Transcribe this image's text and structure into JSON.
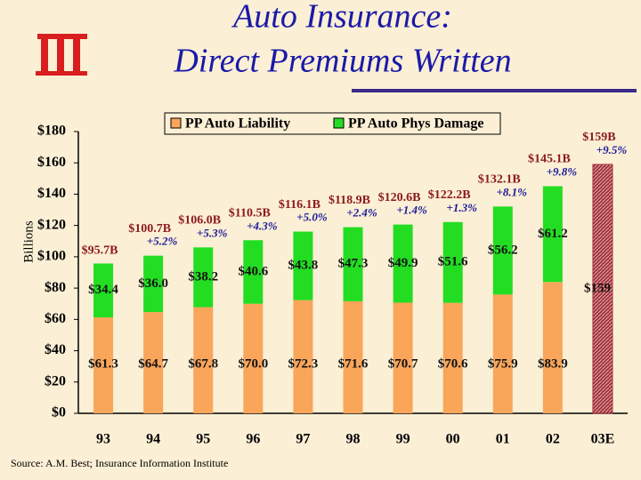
{
  "chart_data": {
    "type": "stacked_bar",
    "title_lines": [
      "Auto Insurance:",
      "Direct Premiums Written"
    ],
    "y_label": "Billions",
    "source": "Source: A.M. Best; Insurance Information Institute",
    "categories": [
      "93",
      "94",
      "95",
      "96",
      "97",
      "98",
      "99",
      "00",
      "01",
      "02",
      "03E"
    ],
    "series": [
      {
        "name": "PP Auto Liability",
        "color": "#f9a55a",
        "values": [
          61.3,
          64.7,
          67.8,
          70,
          72.3,
          71.6,
          70.7,
          70.6,
          75.9,
          83.9,
          null
        ],
        "value_labels": [
          "$61.3",
          "$64.7",
          "$67.8",
          "$70.0",
          "$72.3",
          "$71.6",
          "$70.7",
          "$70.6",
          "$75.9",
          "$83.9",
          null
        ]
      },
      {
        "name": "PP Auto Phys Damage",
        "color": "#22dd22",
        "values": [
          34.4,
          36,
          38.2,
          40.6,
          43.8,
          47.3,
          49.9,
          51.6,
          56.2,
          61.2,
          null
        ],
        "value_labels": [
          "$34.4",
          "$36.0",
          "$38.2",
          "$40.6",
          "$43.8",
          "$47.3",
          "$49.9",
          "$51.6",
          "$56.2",
          "$61.2",
          null
        ]
      }
    ],
    "estimate": {
      "values": [
        null,
        null,
        null,
        null,
        null,
        null,
        null,
        null,
        null,
        null,
        159
      ],
      "value_labels": [
        null,
        null,
        null,
        null,
        null,
        null,
        null,
        null,
        null,
        null,
        "$159"
      ],
      "color": "#a0303a"
    },
    "totals": {
      "values": [
        95.7,
        100.7,
        106,
        110.5,
        116.1,
        118.9,
        120.6,
        122.2,
        132.1,
        145.1,
        159
      ],
      "value_labels": [
        "$95.7B",
        "$100.7B",
        "$106.0B",
        "$110.5B",
        "$116.1B",
        "$118.9B",
        "$120.6B",
        "$122.2B",
        "$132.1B",
        "$145.1B",
        "$159B"
      ]
    },
    "growth": {
      "values": [
        null,
        5.2,
        5.3,
        4.3,
        5.0,
        2.4,
        1.4,
        1.3,
        8.1,
        9.8,
        9.5
      ],
      "value_labels": [
        null,
        "+5.2%",
        "+5.3%",
        "+4.3%",
        "+5.0%",
        "+2.4%",
        "+1.4%",
        "+1.3%",
        "+8.1%",
        "+9.8%",
        "+9.5%"
      ]
    },
    "ylim": [
      0,
      180
    ],
    "yticks": [
      {
        "value": 0,
        "label": "$0"
      },
      {
        "value": 20,
        "label": "$20"
      },
      {
        "value": 40,
        "label": "$40"
      },
      {
        "value": 60,
        "label": "$60"
      },
      {
        "value": 80,
        "label": "$80"
      },
      {
        "value": 100,
        "label": "$100"
      },
      {
        "value": 120,
        "label": "$120"
      },
      {
        "value": 140,
        "label": "$140"
      },
      {
        "value": 160,
        "label": "$160"
      },
      {
        "value": 180,
        "label": "$180"
      }
    ]
  }
}
